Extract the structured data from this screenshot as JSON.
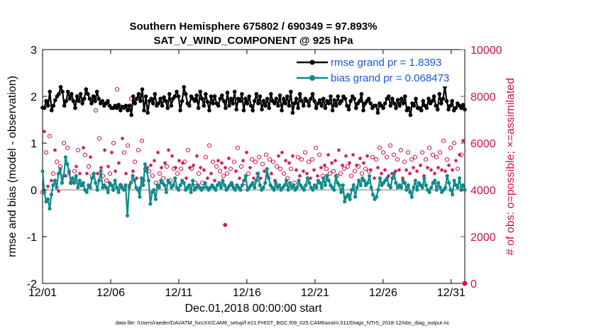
{
  "chart_data": {
    "type": "line",
    "title_line1": "Southern Hemisphere 675802 / 690349 = 97.893%",
    "title_line2": "SAT_V_WIND_COMPONENT @ 925 hPa",
    "xlabel": "Dec.01,2018 00:00:00 start",
    "ylabel_left": "rmse and bias (model - observation)",
    "ylabel_right": "# of obs: o=possible; ×=assimilated",
    "xlim": [
      0,
      31
    ],
    "ylim_left": [
      -2,
      3
    ],
    "ylim_right": [
      0,
      10000
    ],
    "x_ticks": [
      {
        "value": 0,
        "label": "12/01"
      },
      {
        "value": 5,
        "label": "12/06"
      },
      {
        "value": 10,
        "label": "12/11"
      },
      {
        "value": 15,
        "label": "12/16"
      },
      {
        "value": 20,
        "label": "12/21"
      },
      {
        "value": 25,
        "label": "12/26"
      },
      {
        "value": 30,
        "label": "12/31"
      }
    ],
    "y_ticks_left": [
      "-2",
      "-1",
      "0",
      "1",
      "2",
      "3"
    ],
    "y_ticks_right": [
      "0",
      "2000",
      "4000",
      "6000",
      "8000",
      "10000"
    ],
    "legend": [
      {
        "label": "rmse grand pr = 1.8393",
        "color": "#000000"
      },
      {
        "label": "bias grand pr = 0.068473",
        "color": "#008b8b"
      }
    ],
    "zero_line": 0,
    "colors": {
      "rmse": "#000000",
      "bias": "#0e8a8a",
      "obs": "#cc1152",
      "zero": "#bbbbbb"
    },
    "rmse_values": [
      1.76,
      1.75,
      1.9,
      1.8,
      2.1,
      1.7,
      1.8,
      1.92,
      2.0,
      2.05,
      2.2,
      2.1,
      1.8,
      1.9,
      2.1,
      1.95,
      2.05,
      1.9,
      1.75,
      2.0,
      1.9,
      2.05,
      1.85,
      1.95,
      2.15,
      2.05,
      1.95,
      1.85,
      2.0,
      1.9,
      2.1,
      1.95,
      1.85,
      1.9,
      1.8,
      1.85,
      1.9,
      1.8,
      1.75,
      1.75,
      1.8,
      1.75,
      1.82,
      1.7,
      1.78,
      1.75,
      1.8,
      1.7,
      1.8,
      1.6,
      2.0,
      1.85,
      1.95,
      2.05,
      1.9,
      2.15,
      1.7,
      2.0,
      1.65,
      1.9,
      1.95,
      1.85,
      2.05,
      1.8,
      1.85,
      1.95,
      1.8,
      1.98,
      1.9,
      1.75,
      2.05,
      1.8,
      1.95,
      2.0,
      2.1,
      2.0,
      1.7,
      1.9,
      2.2,
      2.05,
      1.85,
      1.8,
      2.0,
      1.95,
      1.9,
      2.02,
      1.75,
      2.1,
      1.95,
      1.8,
      2.05,
      1.88,
      1.7,
      2.0,
      1.85,
      2.0,
      1.85,
      1.8,
      1.95,
      2.02,
      1.9,
      1.75,
      2.08,
      1.8,
      1.95,
      1.85,
      2.1,
      1.72,
      1.95,
      1.9,
      2.05,
      1.7,
      1.95,
      1.85,
      2.0,
      1.8,
      1.7,
      1.9,
      2.05,
      1.85,
      2.0,
      1.72,
      1.9,
      1.8,
      1.95,
      1.75,
      2.05,
      1.9,
      1.85,
      1.95,
      1.8,
      2.02,
      1.7,
      1.95,
      1.85,
      2.0,
      1.8,
      2.1,
      1.65,
      1.85,
      1.95,
      1.75,
      2.05,
      1.9,
      1.8,
      1.95,
      1.9,
      1.8,
      1.95,
      2.05,
      1.9,
      1.75,
      1.85,
      1.92,
      1.8,
      1.95,
      1.75,
      1.9,
      1.85,
      2.0,
      1.7,
      1.92,
      1.8,
      2.0,
      1.85,
      1.9,
      2.0,
      1.95,
      1.8,
      1.72,
      1.9,
      2.0,
      1.95,
      1.75,
      1.85,
      1.9,
      2.05,
      1.7,
      1.85,
      1.9,
      1.95,
      1.85,
      1.75,
      1.8,
      1.8,
      1.65,
      1.85,
      1.8,
      1.75,
      1.85,
      1.95,
      2.0,
      1.8,
      1.95,
      1.85,
      1.75,
      1.92,
      1.8,
      1.95,
      1.85,
      2.0,
      1.7,
      1.75,
      1.6,
      1.85,
      1.8,
      1.95,
      1.75,
      1.75,
      1.7,
      1.9,
      1.8,
      1.75,
      1.95,
      1.85,
      1.9,
      2.0,
      1.8,
      1.72,
      2.05,
      1.85,
      1.95,
      2.2,
      1.9,
      1.72,
      1.8,
      1.9,
      1.7,
      1.75,
      1.85,
      1.8,
      1.75,
      1.82,
      1.72
    ],
    "bias_values": [
      0.4,
      -0.05,
      -0.25,
      -0.2,
      -0.4,
      -0.1,
      0.1,
      0.2,
      0.05,
      0.35,
      0.45,
      0.15,
      0.3,
      0.7,
      0.55,
      0.4,
      0.15,
      0.25,
      0.15,
      0.3,
      0.05,
      0.2,
      0.1,
      0.15,
      0.0,
      -0.05,
      0.1,
      0.05,
      0.25,
      0.35,
      0.15,
      0.0,
      0.2,
      0.4,
      0.05,
      0.1,
      0.05,
      -0.05,
      0.15,
      0.1,
      0.0,
      0.2,
      0.05,
      -0.05,
      0.1,
      0.05,
      0.0,
      0.1,
      -0.55,
      0.05,
      0.15,
      0.3,
      0.2,
      0.05,
      0.0,
      -0.15,
      0.25,
      0.1,
      0.55,
      0.4,
      0.2,
      -0.3,
      -0.05,
      0.0,
      -0.2,
      0.1,
      0.05,
      0.2,
      0.15,
      0.1,
      -0.05,
      0.2,
      0.15,
      0.05,
      0.1,
      0.25,
      0.05,
      0.0,
      0.1,
      0.2,
      0.15,
      0.0,
      0.05,
      0.1,
      -0.05,
      0.2,
      0.0,
      0.05,
      0.1,
      0.05,
      0.0,
      0.05,
      0.15,
      0.05,
      0.0,
      0.05,
      0.1,
      0.05,
      0.0,
      0.1,
      0.15,
      0.05,
      0.2,
      0.1,
      0.0,
      0.05,
      0.1,
      0.15,
      0.05,
      0.0,
      0.1,
      0.05,
      0.0,
      0.1,
      0.2,
      0.3,
      0.0,
      0.05,
      0.1,
      0.15,
      0.05,
      0.2,
      0.35,
      0.1,
      0.0,
      0.05,
      0.15,
      0.45,
      0.25,
      0.1,
      0.05,
      0.0,
      0.15,
      0.05,
      0.1,
      0.0,
      0.05,
      0.1,
      0.2,
      0.0,
      0.15,
      0.05,
      0.1,
      0.0,
      0.05,
      0.2,
      0.1,
      0.05,
      0.0,
      0.1,
      0.25,
      0.15,
      0.05,
      0.0,
      0.1,
      0.05,
      0.2,
      0.15,
      0.05,
      0.25,
      0.1,
      0.3,
      0.2,
      0.1,
      0.05,
      0.0,
      0.3,
      0.15,
      0.1,
      -0.05,
      0.1,
      -0.25,
      -0.15,
      -0.1,
      -0.2,
      0.0,
      0.1,
      -0.15,
      0.05,
      0.2,
      0.1,
      0.25,
      0.2,
      0.1,
      0.15,
      0.3,
      0.05,
      -0.1,
      -0.2,
      -0.15,
      0.0,
      0.25,
      0.1,
      0.15,
      0.2,
      0.25,
      0.1,
      0.05,
      0.25,
      0.35,
      0.15,
      0.05,
      0.1,
      0.05,
      0.2,
      0.15,
      0.0,
      0.1,
      -0.05,
      -0.15,
      0.05,
      0.2,
      0.0,
      0.15,
      0.1,
      0.05,
      0.25,
      0.1,
      0.0,
      -0.05,
      0.05,
      0.15,
      0.2,
      0.0,
      0.15,
      0.05,
      -0.05,
      0.0,
      0.05,
      0.3,
      0.15,
      0.0,
      -0.1,
      0.2,
      0.1,
      0.05,
      0.25,
      0.0,
      0.1,
      0.0
    ],
    "obs_possible_values": [
      3900,
      6800,
      5600,
      4200,
      6300,
      4500,
      4700,
      5900,
      5200,
      4000,
      5000,
      4400,
      6000,
      4700,
      5800,
      4800,
      4300,
      4600,
      4800,
      5200,
      5700,
      4800,
      4200,
      6000,
      5500,
      4800,
      5000,
      5600,
      4600,
      8000,
      7400,
      4800,
      6200,
      5100,
      4600,
      5900,
      4400,
      5200,
      4700,
      5800,
      6000,
      4900,
      8300,
      5300,
      4200,
      6400,
      5600,
      4800,
      5900,
      4300,
      7900,
      4900,
      5200,
      4600,
      5700,
      4200,
      6100,
      4500,
      4900,
      5100,
      4800,
      5200,
      4600,
      5400,
      4300,
      5800,
      4700,
      5100,
      4500,
      5300,
      5000,
      5900,
      4400,
      5600,
      4900,
      5100,
      4700,
      5400,
      4900,
      5300,
      5200,
      4600,
      5700,
      5100,
      4900,
      5200,
      4300,
      5600,
      4700,
      5100,
      4300,
      5000,
      5400,
      4600,
      5900,
      4800,
      5200,
      4500,
      5000,
      5400,
      4800,
      5300,
      4600,
      5100,
      4700,
      5500,
      4900,
      4300,
      5200,
      4900,
      5800,
      4600,
      5000,
      5400,
      4300,
      5800,
      4700,
      5100,
      5300,
      4600,
      5200,
      4800,
      5400,
      4600,
      5100,
      4900,
      5500,
      4700,
      5300,
      4800,
      5200,
      4500,
      5000,
      5600,
      4900,
      5800,
      4700,
      5400,
      4500,
      5300,
      4900,
      5600,
      4300,
      5000,
      5400,
      4700,
      5300,
      4900,
      5600,
      4800,
      5200,
      4600,
      5300,
      5000,
      5800,
      4700,
      5500,
      5100,
      4600,
      5200,
      4900,
      5700,
      4700,
      5300,
      4800,
      5400,
      4600,
      5900,
      4700,
      5200,
      4900,
      5600,
      5000,
      5300,
      4600,
      5700,
      4800,
      5200,
      5000,
      5500,
      4700,
      5300,
      4900,
      5600,
      4800,
      5000,
      5400,
      4600,
      5300,
      5100,
      5800,
      4800,
      5600,
      5000,
      5400,
      4700,
      5900,
      4800,
      5500,
      4900,
      5300,
      5000,
      5700,
      4600,
      5200,
      5000,
      5600,
      4800,
      5300,
      5100,
      5400,
      4900,
      7500,
      5200,
      5600,
      4700,
      5300,
      5100,
      5800,
      5000,
      5500,
      4800,
      5400,
      5100,
      5600,
      5000,
      6100,
      4900,
      5300,
      5200,
      5800,
      5000,
      6000,
      5400,
      4900,
      5700,
      5500,
      6300,
      0
    ],
    "obs_assimilated_values": [
      3950,
      6500,
      5400,
      4150,
      6100,
      4400,
      4600,
      5700,
      5000,
      3950,
      4850,
      4300,
      5800,
      4600,
      5600,
      4700,
      4200,
      4500,
      4700,
      5000,
      5500,
      4700,
      4100,
      5800,
      5300,
      4700,
      4850,
      5400,
      4500,
      7800,
      7200,
      4700,
      6000,
      4950,
      4500,
      5700,
      4300,
      5000,
      4600,
      5600,
      5800,
      4800,
      8000,
      5150,
      4100,
      6200,
      5400,
      4700,
      5700,
      4200,
      7700,
      4800,
      5050,
      4500,
      5500,
      4100,
      5900,
      4400,
      4800,
      4950,
      4700,
      5050,
      4500,
      5250,
      4200,
      5600,
      4600,
      4950,
      4400,
      5150,
      4850,
      5700,
      4300,
      5450,
      4800,
      4950,
      4600,
      5250,
      4800,
      5150,
      5050,
      4500,
      5500,
      4950,
      4800,
      5050,
      4200,
      5450,
      4600,
      4950,
      4200,
      4850,
      5250,
      4500,
      5700,
      4700,
      5050,
      4400,
      4850,
      5250,
      4700,
      5150,
      4500,
      4950,
      4600,
      5350,
      4800,
      4200,
      5050,
      4800,
      5600,
      4500,
      4850,
      5250,
      4200,
      5600,
      4600,
      4950,
      5150,
      4500,
      5050,
      4700,
      5250,
      4500,
      4950,
      4800,
      5350,
      4600,
      5150,
      4700,
      5050,
      4400,
      4850,
      5450,
      4800,
      5600,
      4600,
      5250,
      4400,
      5150,
      4800,
      5450,
      4200,
      4850,
      5250,
      4600,
      5150,
      4800,
      5450,
      4700,
      5050,
      4500,
      5150,
      4850,
      5600,
      4600,
      5350,
      4950,
      4500,
      5050,
      4800,
      5500,
      4600,
      5150,
      4700,
      5250,
      4500,
      5700,
      4600,
      5050,
      4800,
      5450,
      4850,
      5150,
      4500,
      5500,
      4700,
      5050,
      4850,
      5350,
      4600,
      5150,
      4800,
      5450,
      4700,
      4850,
      5250,
      4500,
      5150,
      4950,
      5600,
      4700,
      5450,
      4850,
      5250,
      4600,
      5700,
      4700,
      5350,
      4800,
      5150,
      4850,
      5500,
      4500,
      5050,
      4850,
      5450,
      4700,
      5150,
      4950,
      5250,
      4800,
      7300,
      5050,
      5450,
      4600,
      5150,
      4950,
      5600,
      4850,
      5350,
      4700,
      5250,
      4950,
      5450,
      4850,
      5900,
      4800,
      5150,
      5050,
      5600,
      4850,
      5800,
      5250,
      4800,
      5500,
      5350,
      6100,
      4100
    ],
    "isolated_points": {
      "bias_outlier_x": 13.4,
      "bias_outlier_y": -0.75
    }
  },
  "footer": {
    "text": "data file: /Users/raeder/DAI/ATM_forcXX/CAM6_setup/f.e21.FHIST_BGC.f09_025.CAM6assim.011/Diags_NTrS_2018-12/obs_diag_output.nc"
  }
}
